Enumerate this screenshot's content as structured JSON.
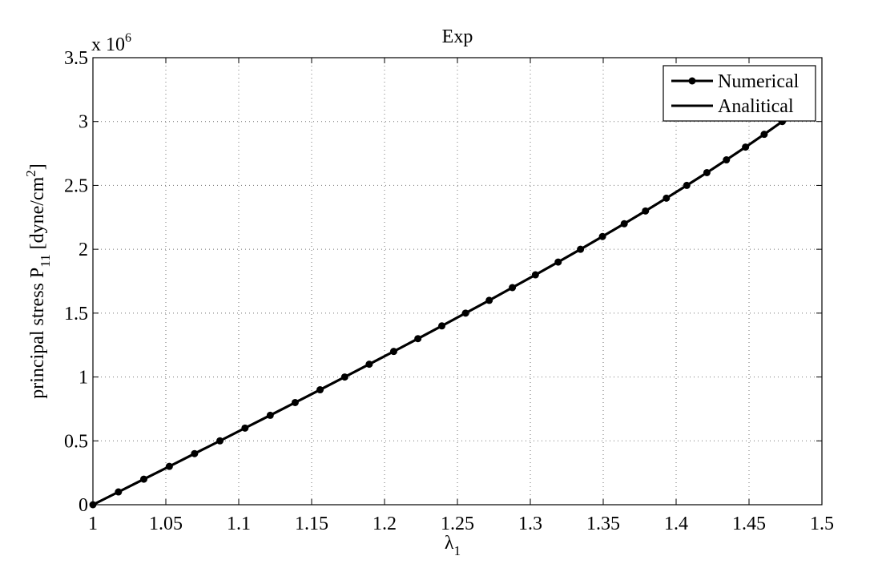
{
  "chart_data": {
    "type": "line",
    "title": "Exp",
    "xlabel": "λ",
    "xlabel_sub": "1",
    "ylabel": "principal stress P",
    "ylabel_sub": "11",
    "ylabel_unit_pre": " [dyne/cm",
    "ylabel_unit_sup": "2",
    "ylabel_unit_post": "]",
    "y_multiplier_prefix": "x 10",
    "y_multiplier_exp": "6",
    "xlim": [
      1,
      1.5
    ],
    "ylim": [
      0,
      3.5
    ],
    "x_ticks": [
      "1",
      "1.05",
      "1.1",
      "1.15",
      "1.2",
      "1.25",
      "1.3",
      "1.35",
      "1.4",
      "1.45",
      "1.5"
    ],
    "y_ticks": [
      "0",
      "0.5",
      "1",
      "1.5",
      "2",
      "2.5",
      "3",
      "3.5"
    ],
    "grid": true,
    "legend_position": "top-right",
    "series": [
      {
        "name": "Numerical",
        "style": "line-with-markers",
        "color": "#000000",
        "x": [
          1.0,
          1.0175,
          1.0349,
          1.0524,
          1.0697,
          1.0871,
          1.1043,
          1.1216,
          1.1387,
          1.1558,
          1.1727,
          1.1895,
          1.2063,
          1.2229,
          1.2393,
          1.2556,
          1.2718,
          1.2877,
          1.3035,
          1.3191,
          1.3344,
          1.3495,
          1.3644,
          1.379,
          1.3933,
          1.4073,
          1.4211,
          1.4345,
          1.4476,
          1.4604,
          1.4728
        ],
        "y": [
          0,
          0.1,
          0.2,
          0.3,
          0.4,
          0.5,
          0.6,
          0.7,
          0.8,
          0.9,
          1.0,
          1.1,
          1.2,
          1.3,
          1.4,
          1.5,
          1.6,
          1.7,
          1.8,
          1.9,
          2.0,
          2.1,
          2.2,
          2.3,
          2.4,
          2.5,
          2.6,
          2.7,
          2.8,
          2.9,
          3.0
        ]
      },
      {
        "name": "Analitical",
        "style": "line",
        "color": "#000000",
        "x": [
          1.0,
          1.0175,
          1.0349,
          1.0524,
          1.0697,
          1.0871,
          1.1043,
          1.1216,
          1.1387,
          1.1558,
          1.1727,
          1.1895,
          1.2063,
          1.2229,
          1.2393,
          1.2556,
          1.2718,
          1.2877,
          1.3035,
          1.3191,
          1.3344,
          1.3495,
          1.3644,
          1.379,
          1.3933,
          1.4073,
          1.4211,
          1.4345,
          1.4476,
          1.4604,
          1.4728
        ],
        "y": [
          0,
          0.1,
          0.2,
          0.3,
          0.4,
          0.5,
          0.6,
          0.7,
          0.8,
          0.9,
          1.0,
          1.1,
          1.2,
          1.3,
          1.4,
          1.5,
          1.6,
          1.7,
          1.8,
          1.9,
          2.0,
          2.1,
          2.2,
          2.3,
          2.4,
          2.5,
          2.6,
          2.7,
          2.8,
          2.9,
          3.0
        ]
      }
    ]
  }
}
